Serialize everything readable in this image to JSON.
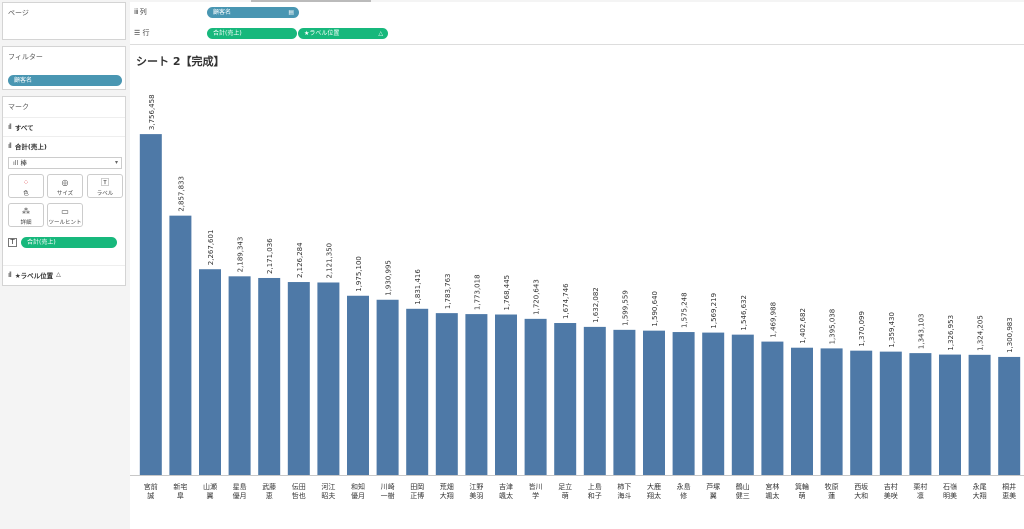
{
  "left": {
    "pages_title": "ページ",
    "filters_title": "フィルター",
    "filter_pill": "顧客名",
    "marks_title": "マーク",
    "all_label": "すべて",
    "measure_label": "合計(売上)",
    "mark_type": "棒",
    "buttons": {
      "color": "色",
      "size": "サイズ",
      "label": "ラベル",
      "detail": "詳細",
      "tooltip": "ツールヒント"
    },
    "label_pill": "合計(売上)",
    "label_pos_title": "★ラベル位置"
  },
  "shelves": {
    "columns_label": "列",
    "columns_pill": "顧客名",
    "rows_label": "行",
    "rows_pill1": "合計(売上)",
    "rows_pill2": "★ラベル位置"
  },
  "sheet": {
    "title": "シート 2【完成】"
  },
  "chart_data": {
    "type": "bar",
    "categories": [
      "宮前\n誠",
      "新宅\n皐",
      "山瀬\n翼",
      "星島\n優月",
      "武藤\n恵",
      "伝田\n哲也",
      "河江\n昭夫",
      "和知\n優月",
      "川崎\n一樹",
      "田岡\n正博",
      "荒畑\n大翔",
      "江野\n美羽",
      "吉津\n颯太",
      "皆川\n学",
      "足立\n萌",
      "上島\n和子",
      "柿下\n海斗",
      "大鹿\n翔太",
      "永島\n修",
      "芦塚\n翼",
      "鶴山\n健三",
      "宮林\n颯太",
      "箕輪\n萌",
      "牧原\n蓮",
      "西坂\n大和",
      "吉村\n美咲",
      "栗村\n凛",
      "石嶺\n明美",
      "永尾\n大翔",
      "桐井\n恵美"
    ],
    "values": [
      3756458,
      2857833,
      2267601,
      2189343,
      2171036,
      2126284,
      2121350,
      1975100,
      1930995,
      1831416,
      1783763,
      1773018,
      1768445,
      1720643,
      1674746,
      1632082,
      1599559,
      1590640,
      1575248,
      1569219,
      1546632,
      1469988,
      1402682,
      1395038,
      1370099,
      1359430,
      1343103,
      1326953,
      1324205,
      1300983
    ],
    "value_labels": [
      "3,756,458",
      "2,857,833",
      "2,267,601",
      "2,189,343",
      "2,171,036",
      "2,126,284",
      "2,121,350",
      "1,975,100",
      "1,930,995",
      "1,831,416",
      "1,783,763",
      "1,773,018",
      "1,768,445",
      "1,720,643",
      "1,674,746",
      "1,632,082",
      "1,599,559",
      "1,590,640",
      "1,575,248",
      "1,569,219",
      "1,546,632",
      "1,469,988",
      "1,402,682",
      "1,395,038",
      "1,370,099",
      "1,359,430",
      "1,343,103",
      "1,326,953",
      "1,324,205",
      "1,300,983"
    ],
    "ylim": [
      0,
      4000000
    ],
    "bar_color": "#4e79a7",
    "grid": false
  }
}
